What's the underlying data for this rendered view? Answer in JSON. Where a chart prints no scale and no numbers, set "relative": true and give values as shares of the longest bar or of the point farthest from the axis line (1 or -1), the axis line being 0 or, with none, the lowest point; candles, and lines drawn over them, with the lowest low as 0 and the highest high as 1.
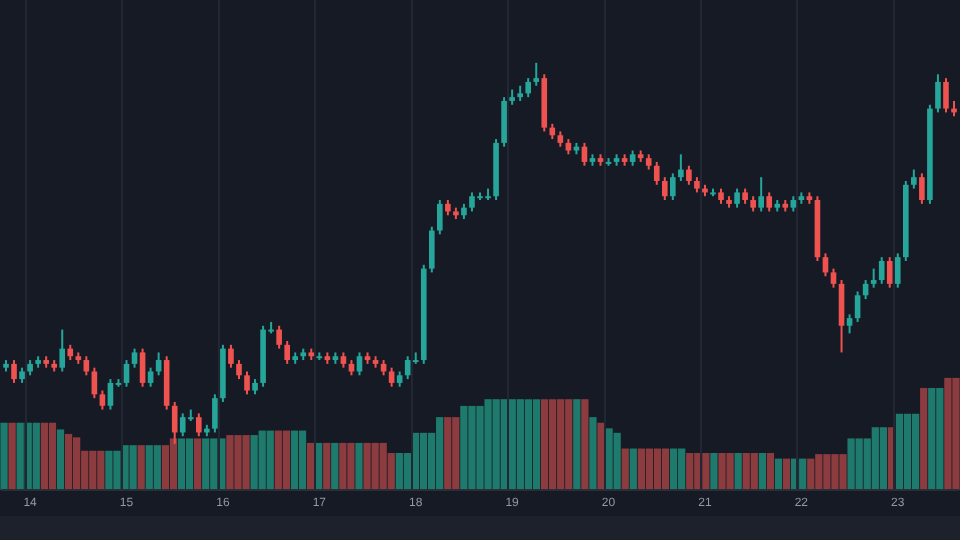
{
  "chart_data": [
    {
      "type": "candlestick",
      "relative": true,
      "grid": "x",
      "categories": [
        null,
        null,
        null,
        "14",
        null,
        null,
        null,
        null,
        null,
        null,
        null,
        null,
        null,
        null,
        null,
        "15",
        null,
        null,
        null,
        null,
        null,
        null,
        null,
        null,
        null,
        null,
        null,
        "16",
        null,
        null,
        null,
        null,
        null,
        null,
        null,
        null,
        null,
        null,
        null,
        "17",
        null,
        null,
        null,
        null,
        null,
        null,
        null,
        null,
        null,
        null,
        null,
        "18",
        null,
        null,
        null,
        null,
        null,
        null,
        null,
        null,
        null,
        null,
        null,
        "19",
        null,
        null,
        null,
        null,
        null,
        null,
        null,
        null,
        null,
        null,
        null,
        "20",
        null,
        null,
        null,
        null,
        null,
        null,
        null,
        null,
        null,
        null,
        null,
        "21",
        null,
        null,
        null,
        null,
        null,
        null,
        null,
        null,
        null,
        null,
        null,
        "22",
        null,
        null,
        null,
        null,
        null,
        null,
        null,
        null,
        null,
        null,
        null,
        "23",
        null,
        null,
        null,
        null,
        null,
        null,
        null
      ],
      "ohlc": [
        [
          0.2,
          0.22,
          0.19,
          0.21
        ],
        [
          0.21,
          0.22,
          0.16,
          0.17
        ],
        [
          0.17,
          0.2,
          0.16,
          0.19
        ],
        [
          0.19,
          0.22,
          0.18,
          0.21
        ],
        [
          0.21,
          0.23,
          0.2,
          0.22
        ],
        [
          0.22,
          0.23,
          0.2,
          0.21
        ],
        [
          0.21,
          0.22,
          0.19,
          0.2
        ],
        [
          0.2,
          0.3,
          0.19,
          0.25
        ],
        [
          0.25,
          0.26,
          0.22,
          0.23
        ],
        [
          0.23,
          0.24,
          0.21,
          0.22
        ],
        [
          0.22,
          0.23,
          0.18,
          0.19
        ],
        [
          0.19,
          0.2,
          0.12,
          0.13
        ],
        [
          0.13,
          0.14,
          0.09,
          0.1
        ],
        [
          0.1,
          0.17,
          0.09,
          0.16
        ],
        [
          0.16,
          0.17,
          0.15,
          0.16
        ],
        [
          0.16,
          0.22,
          0.15,
          0.21
        ],
        [
          0.21,
          0.25,
          0.2,
          0.24
        ],
        [
          0.24,
          0.25,
          0.15,
          0.16
        ],
        [
          0.16,
          0.2,
          0.15,
          0.19
        ],
        [
          0.19,
          0.24,
          0.18,
          0.22
        ],
        [
          0.22,
          0.23,
          0.09,
          0.1
        ],
        [
          0.1,
          0.11,
          0,
          0.03
        ],
        [
          0.03,
          0.08,
          0.02,
          0.07
        ],
        [
          0.07,
          0.09,
          0.06,
          0.07
        ],
        [
          0.07,
          0.08,
          0.02,
          0.03
        ],
        [
          0.03,
          0.05,
          0.02,
          0.04
        ],
        [
          0.04,
          0.13,
          0.03,
          0.12
        ],
        [
          0.12,
          0.26,
          0.11,
          0.25
        ],
        [
          0.25,
          0.26,
          0.2,
          0.21
        ],
        [
          0.21,
          0.22,
          0.17,
          0.18
        ],
        [
          0.18,
          0.19,
          0.13,
          0.14
        ],
        [
          0.14,
          0.17,
          0.13,
          0.16
        ],
        [
          0.16,
          0.31,
          0.15,
          0.3
        ],
        [
          0.3,
          0.32,
          0.29,
          0.3
        ],
        [
          0.3,
          0.31,
          0.25,
          0.26
        ],
        [
          0.26,
          0.27,
          0.21,
          0.22
        ],
        [
          0.22,
          0.24,
          0.21,
          0.23
        ],
        [
          0.23,
          0.25,
          0.22,
          0.24
        ],
        [
          0.24,
          0.25,
          0.22,
          0.23
        ],
        [
          0.23,
          0.24,
          0.22,
          0.23
        ],
        [
          0.23,
          0.24,
          0.21,
          0.22
        ],
        [
          0.22,
          0.24,
          0.21,
          0.23
        ],
        [
          0.23,
          0.24,
          0.2,
          0.21
        ],
        [
          0.21,
          0.22,
          0.18,
          0.19
        ],
        [
          0.19,
          0.24,
          0.18,
          0.23
        ],
        [
          0.23,
          0.24,
          0.21,
          0.22
        ],
        [
          0.22,
          0.23,
          0.2,
          0.21
        ],
        [
          0.21,
          0.22,
          0.18,
          0.19
        ],
        [
          0.19,
          0.2,
          0.15,
          0.16
        ],
        [
          0.16,
          0.19,
          0.15,
          0.18
        ],
        [
          0.18,
          0.23,
          0.17,
          0.22
        ],
        [
          0.22,
          0.24,
          0.21,
          0.22
        ],
        [
          0.22,
          0.47,
          0.21,
          0.46
        ],
        [
          0.46,
          0.57,
          0.45,
          0.56
        ],
        [
          0.56,
          0.64,
          0.55,
          0.63
        ],
        [
          0.63,
          0.64,
          0.6,
          0.61
        ],
        [
          0.61,
          0.62,
          0.59,
          0.6
        ],
        [
          0.6,
          0.63,
          0.59,
          0.62
        ],
        [
          0.62,
          0.66,
          0.61,
          0.65
        ],
        [
          0.65,
          0.66,
          0.64,
          0.65
        ],
        [
          0.65,
          0.67,
          0.64,
          0.65
        ],
        [
          0.65,
          0.8,
          0.64,
          0.79
        ],
        [
          0.79,
          0.91,
          0.78,
          0.9
        ],
        [
          0.9,
          0.93,
          0.89,
          0.91
        ],
        [
          0.91,
          0.94,
          0.9,
          0.92
        ],
        [
          0.92,
          0.96,
          0.91,
          0.95
        ],
        [
          0.95,
          1,
          0.94,
          0.96
        ],
        [
          0.96,
          0.97,
          0.82,
          0.83
        ],
        [
          0.83,
          0.84,
          0.8,
          0.81
        ],
        [
          0.81,
          0.82,
          0.78,
          0.79
        ],
        [
          0.79,
          0.8,
          0.76,
          0.77
        ],
        [
          0.77,
          0.79,
          0.76,
          0.78
        ],
        [
          0.78,
          0.79,
          0.73,
          0.74
        ],
        [
          0.74,
          0.76,
          0.73,
          0.75
        ],
        [
          0.75,
          0.76,
          0.73,
          0.74
        ],
        [
          0.74,
          0.75,
          0.73,
          0.74
        ],
        [
          0.74,
          0.76,
          0.73,
          0.75
        ],
        [
          0.75,
          0.76,
          0.73,
          0.74
        ],
        [
          0.74,
          0.77,
          0.73,
          0.76
        ],
        [
          0.76,
          0.77,
          0.74,
          0.75
        ],
        [
          0.75,
          0.76,
          0.72,
          0.73
        ],
        [
          0.73,
          0.74,
          0.68,
          0.69
        ],
        [
          0.69,
          0.7,
          0.64,
          0.65
        ],
        [
          0.65,
          0.71,
          0.64,
          0.7
        ],
        [
          0.7,
          0.76,
          0.69,
          0.72
        ],
        [
          0.72,
          0.73,
          0.68,
          0.69
        ],
        [
          0.69,
          0.7,
          0.66,
          0.67
        ],
        [
          0.67,
          0.68,
          0.65,
          0.66
        ],
        [
          0.66,
          0.67,
          0.65,
          0.66
        ],
        [
          0.66,
          0.67,
          0.63,
          0.64
        ],
        [
          0.64,
          0.65,
          0.62,
          0.63
        ],
        [
          0.63,
          0.67,
          0.62,
          0.66
        ],
        [
          0.66,
          0.67,
          0.63,
          0.64
        ],
        [
          0.64,
          0.65,
          0.61,
          0.62
        ],
        [
          0.62,
          0.7,
          0.61,
          0.65
        ],
        [
          0.65,
          0.66,
          0.61,
          0.62
        ],
        [
          0.62,
          0.64,
          0.61,
          0.63
        ],
        [
          0.63,
          0.64,
          0.61,
          0.62
        ],
        [
          0.62,
          0.65,
          0.61,
          0.64
        ],
        [
          0.64,
          0.66,
          0.63,
          0.65
        ],
        [
          0.65,
          0.66,
          0.63,
          0.64
        ],
        [
          0.64,
          0.65,
          0.48,
          0.49
        ],
        [
          0.49,
          0.5,
          0.44,
          0.45
        ],
        [
          0.45,
          0.46,
          0.41,
          0.42
        ],
        [
          0.42,
          0.43,
          0.24,
          0.31
        ],
        [
          0.31,
          0.34,
          0.29,
          0.33
        ],
        [
          0.33,
          0.4,
          0.32,
          0.39
        ],
        [
          0.39,
          0.43,
          0.38,
          0.42
        ],
        [
          0.42,
          0.46,
          0.41,
          0.43
        ],
        [
          0.43,
          0.49,
          0.42,
          0.48
        ],
        [
          0.48,
          0.49,
          0.41,
          0.42
        ],
        [
          0.42,
          0.5,
          0.41,
          0.49
        ],
        [
          0.49,
          0.69,
          0.48,
          0.68
        ],
        [
          0.68,
          0.72,
          0.67,
          0.7
        ],
        [
          0.7,
          0.71,
          0.63,
          0.64
        ],
        [
          0.64,
          0.89,
          0.63,
          0.88
        ],
        [
          0.88,
          0.97,
          0.87,
          0.95
        ],
        [
          0.95,
          0.96,
          0.87,
          0.88
        ],
        [
          0.88,
          0.9,
          0.86,
          0.87
        ]
      ],
      "colors": [
        "#26a69a",
        "#ef5350",
        "#26a69a",
        "#26a69a",
        "#26a69a",
        "#ef5350",
        "#ef5350",
        "#26a69a",
        "#ef5350",
        "#ef5350",
        "#ef5350",
        "#ef5350",
        "#ef5350",
        "#26a69a",
        "#26a69a",
        "#26a69a",
        "#26a69a",
        "#ef5350",
        "#26a69a",
        "#26a69a",
        "#ef5350",
        "#ef5350",
        "#26a69a",
        "#26a69a",
        "#ef5350",
        "#26a69a",
        "#26a69a",
        "#26a69a",
        "#ef5350",
        "#ef5350",
        "#ef5350",
        "#26a69a",
        "#26a69a",
        "#26a69a",
        "#ef5350",
        "#ef5350",
        "#26a69a",
        "#26a69a",
        "#ef5350",
        "#26a69a",
        "#ef5350",
        "#26a69a",
        "#ef5350",
        "#ef5350",
        "#26a69a",
        "#ef5350",
        "#ef5350",
        "#ef5350",
        "#ef5350",
        "#26a69a",
        "#26a69a",
        "#26a69a",
        "#26a69a",
        "#26a69a",
        "#26a69a",
        "#ef5350",
        "#ef5350",
        "#26a69a",
        "#26a69a",
        "#26a69a",
        "#26a69a",
        "#26a69a",
        "#26a69a",
        "#26a69a",
        "#26a69a",
        "#26a69a",
        "#26a69a",
        "#ef5350",
        "#ef5350",
        "#ef5350",
        "#ef5350",
        "#26a69a",
        "#ef5350",
        "#26a69a",
        "#ef5350",
        "#26a69a",
        "#26a69a",
        "#ef5350",
        "#26a69a",
        "#ef5350",
        "#ef5350",
        "#ef5350",
        "#ef5350",
        "#26a69a",
        "#26a69a",
        "#ef5350",
        "#ef5350",
        "#ef5350",
        "#26a69a",
        "#ef5350",
        "#ef5350",
        "#26a69a",
        "#ef5350",
        "#ef5350",
        "#26a69a",
        "#ef5350",
        "#26a69a",
        "#ef5350",
        "#26a69a",
        "#26a69a",
        "#ef5350",
        "#ef5350",
        "#ef5350",
        "#ef5350",
        "#ef5350",
        "#26a69a",
        "#26a69a",
        "#26a69a",
        "#26a69a",
        "#26a69a",
        "#ef5350",
        "#26a69a",
        "#26a69a",
        "#26a69a",
        "#ef5350",
        "#26a69a",
        "#26a69a",
        "#ef5350",
        "#ef5350"
      ]
    },
    {
      "type": "bar",
      "relative": true,
      "tick_labels": false,
      "categories": [
        null,
        null,
        null,
        "14",
        null,
        null,
        null,
        null,
        null,
        null,
        null,
        null,
        null,
        null,
        null,
        "15",
        null,
        null,
        null,
        null,
        null,
        null,
        null,
        null,
        null,
        null,
        null,
        "16",
        null,
        null,
        null,
        null,
        null,
        null,
        null,
        null,
        null,
        null,
        null,
        "17",
        null,
        null,
        null,
        null,
        null,
        null,
        null,
        null,
        null,
        null,
        null,
        "18",
        null,
        null,
        null,
        null,
        null,
        null,
        null,
        null,
        null,
        null,
        null,
        "19",
        null,
        null,
        null,
        null,
        null,
        null,
        null,
        null,
        null,
        null,
        null,
        "20",
        null,
        null,
        null,
        null,
        null,
        null,
        null,
        null,
        null,
        null,
        null,
        "21",
        null,
        null,
        null,
        null,
        null,
        null,
        null,
        null,
        null,
        null,
        null,
        "22",
        null,
        null,
        null,
        null,
        null,
        null,
        null,
        null,
        null,
        null,
        null,
        "23",
        null,
        null,
        null,
        null,
        null,
        null,
        null
      ],
      "values": [
        0.6,
        0.6,
        0.6,
        0.6,
        0.6,
        0.6,
        0.6,
        0.54,
        0.5,
        0.47,
        0.35,
        0.35,
        0.35,
        0.35,
        0.35,
        0.4,
        0.4,
        0.4,
        0.4,
        0.4,
        0.4,
        0.46,
        0.46,
        0.46,
        0.46,
        0.46,
        0.46,
        0.46,
        0.49,
        0.49,
        0.49,
        0.49,
        0.53,
        0.53,
        0.53,
        0.53,
        0.53,
        0.53,
        0.42,
        0.42,
        0.42,
        0.42,
        0.42,
        0.42,
        0.42,
        0.42,
        0.42,
        0.42,
        0.33,
        0.33,
        0.33,
        0.51,
        0.51,
        0.51,
        0.65,
        0.65,
        0.65,
        0.75,
        0.75,
        0.75,
        0.81,
        0.81,
        0.81,
        0.81,
        0.81,
        0.81,
        0.81,
        0.81,
        0.81,
        0.81,
        0.81,
        0.81,
        0.81,
        0.65,
        0.6,
        0.55,
        0.51,
        0.37,
        0.37,
        0.37,
        0.37,
        0.37,
        0.37,
        0.37,
        0.37,
        0.33,
        0.33,
        0.33,
        0.33,
        0.33,
        0.33,
        0.33,
        0.33,
        0.33,
        0.33,
        0.33,
        0.28,
        0.28,
        0.28,
        0.28,
        0.28,
        0.32,
        0.32,
        0.32,
        0.32,
        0.46,
        0.46,
        0.46,
        0.56,
        0.56,
        0.56,
        0.68,
        0.68,
        0.68,
        0.91,
        0.91,
        0.91,
        1,
        1
      ],
      "colors": [
        "#1e7a6d",
        "#8c3b3f",
        "#1e7a6d",
        "#1e7a6d",
        "#1e7a6d",
        "#8c3b3f",
        "#8c3b3f",
        "#1e7a6d",
        "#8c3b3f",
        "#8c3b3f",
        "#8c3b3f",
        "#8c3b3f",
        "#8c3b3f",
        "#1e7a6d",
        "#1e7a6d",
        "#1e7a6d",
        "#1e7a6d",
        "#8c3b3f",
        "#1e7a6d",
        "#1e7a6d",
        "#8c3b3f",
        "#8c3b3f",
        "#1e7a6d",
        "#1e7a6d",
        "#8c3b3f",
        "#1e7a6d",
        "#1e7a6d",
        "#1e7a6d",
        "#8c3b3f",
        "#8c3b3f",
        "#8c3b3f",
        "#1e7a6d",
        "#1e7a6d",
        "#1e7a6d",
        "#8c3b3f",
        "#8c3b3f",
        "#1e7a6d",
        "#1e7a6d",
        "#8c3b3f",
        "#1e7a6d",
        "#8c3b3f",
        "#1e7a6d",
        "#8c3b3f",
        "#8c3b3f",
        "#1e7a6d",
        "#8c3b3f",
        "#8c3b3f",
        "#8c3b3f",
        "#8c3b3f",
        "#1e7a6d",
        "#1e7a6d",
        "#1e7a6d",
        "#1e7a6d",
        "#1e7a6d",
        "#1e7a6d",
        "#8c3b3f",
        "#8c3b3f",
        "#1e7a6d",
        "#1e7a6d",
        "#1e7a6d",
        "#1e7a6d",
        "#1e7a6d",
        "#1e7a6d",
        "#1e7a6d",
        "#1e7a6d",
        "#1e7a6d",
        "#1e7a6d",
        "#8c3b3f",
        "#8c3b3f",
        "#8c3b3f",
        "#8c3b3f",
        "#1e7a6d",
        "#8c3b3f",
        "#1e7a6d",
        "#8c3b3f",
        "#1e7a6d",
        "#1e7a6d",
        "#8c3b3f",
        "#1e7a6d",
        "#8c3b3f",
        "#8c3b3f",
        "#8c3b3f",
        "#8c3b3f",
        "#1e7a6d",
        "#1e7a6d",
        "#8c3b3f",
        "#8c3b3f",
        "#8c3b3f",
        "#1e7a6d",
        "#8c3b3f",
        "#8c3b3f",
        "#1e7a6d",
        "#8c3b3f",
        "#8c3b3f",
        "#1e7a6d",
        "#8c3b3f",
        "#1e7a6d",
        "#8c3b3f",
        "#1e7a6d",
        "#1e7a6d",
        "#8c3b3f",
        "#8c3b3f",
        "#8c3b3f",
        "#8c3b3f",
        "#8c3b3f",
        "#1e7a6d",
        "#1e7a6d",
        "#1e7a6d",
        "#1e7a6d",
        "#1e7a6d",
        "#8c3b3f",
        "#1e7a6d",
        "#1e7a6d",
        "#1e7a6d",
        "#8c3b3f",
        "#1e7a6d",
        "#1e7a6d",
        "#8c3b3f",
        "#8c3b3f"
      ]
    }
  ]
}
